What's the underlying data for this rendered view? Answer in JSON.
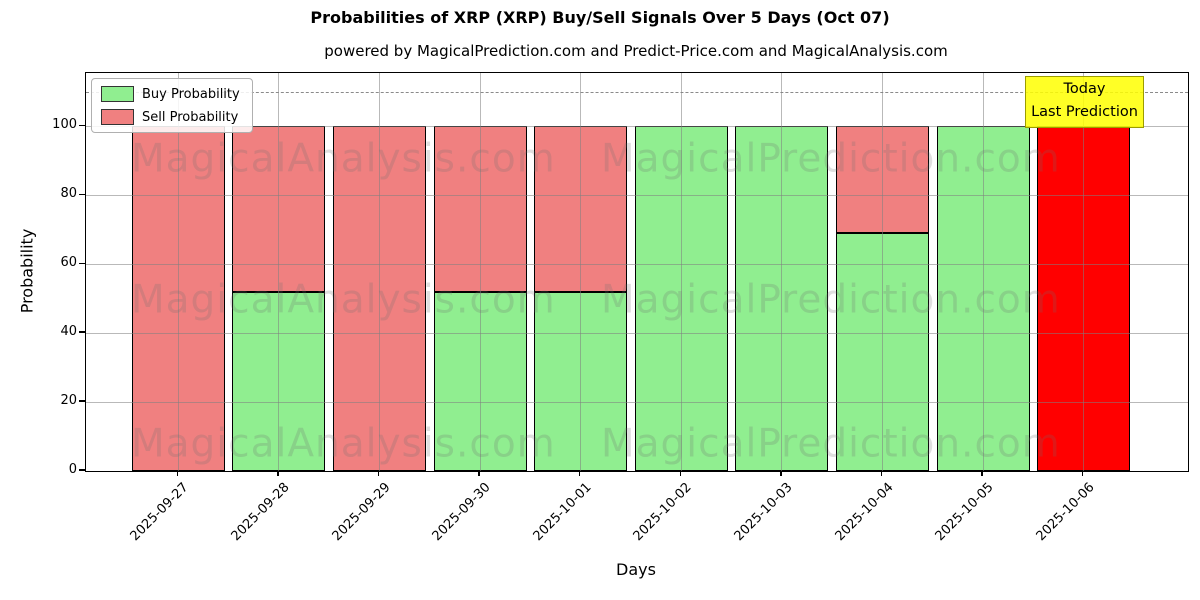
{
  "title": "Probabilities of XRP (XRP) Buy/Sell Signals Over 5 Days (Oct 07)",
  "subtitle": "powered by MagicalPrediction.com and Predict-Price.com and MagicalAnalysis.com",
  "axes": {
    "y_label": "Probability",
    "x_label": "Days",
    "y_ticks": [
      0,
      20,
      40,
      60,
      80,
      100
    ]
  },
  "legend": {
    "items": [
      {
        "label": "Buy Probability",
        "color": "#90EE90"
      },
      {
        "label": "Sell Probability",
        "color": "#F08080"
      }
    ]
  },
  "annotation": {
    "line1": "Today",
    "line2": "Last Prediction",
    "bg_color": "rgba(255,255,0,0.85)",
    "border_color": "#9c9c00"
  },
  "watermarks": {
    "left_text": "MagicalAnalysis.com",
    "right_text": "MagicalPrediction.com"
  },
  "chart_data": {
    "type": "bar",
    "stacked": true,
    "title": "Probabilities of XRP (XRP) Buy/Sell Signals Over 5 Days (Oct 07)",
    "xlabel": "Days",
    "ylabel": "Probability",
    "categories": [
      "2025-09-27",
      "2025-09-28",
      "2025-09-29",
      "2025-09-30",
      "2025-10-01",
      "2025-10-02",
      "2025-10-03",
      "2025-10-04",
      "2025-10-05",
      "2025-10-06"
    ],
    "series": [
      {
        "name": "Buy Probability",
        "color": "#90EE90",
        "values": [
          0,
          52,
          0,
          52,
          52,
          100,
          100,
          69,
          100,
          0
        ]
      },
      {
        "name": "Sell Probability",
        "color": "#F08080",
        "values": [
          100,
          48,
          100,
          48,
          48,
          0,
          0,
          31,
          0,
          100
        ]
      }
    ],
    "today_bar": {
      "index": 9,
      "color": "#FF0000",
      "note": "Today / Last Prediction"
    },
    "ylim": [
      0,
      115.5
    ],
    "dashed_line_y": 110,
    "grid": true,
    "legend_position": "upper left",
    "bar_edge_color": "#000000"
  }
}
